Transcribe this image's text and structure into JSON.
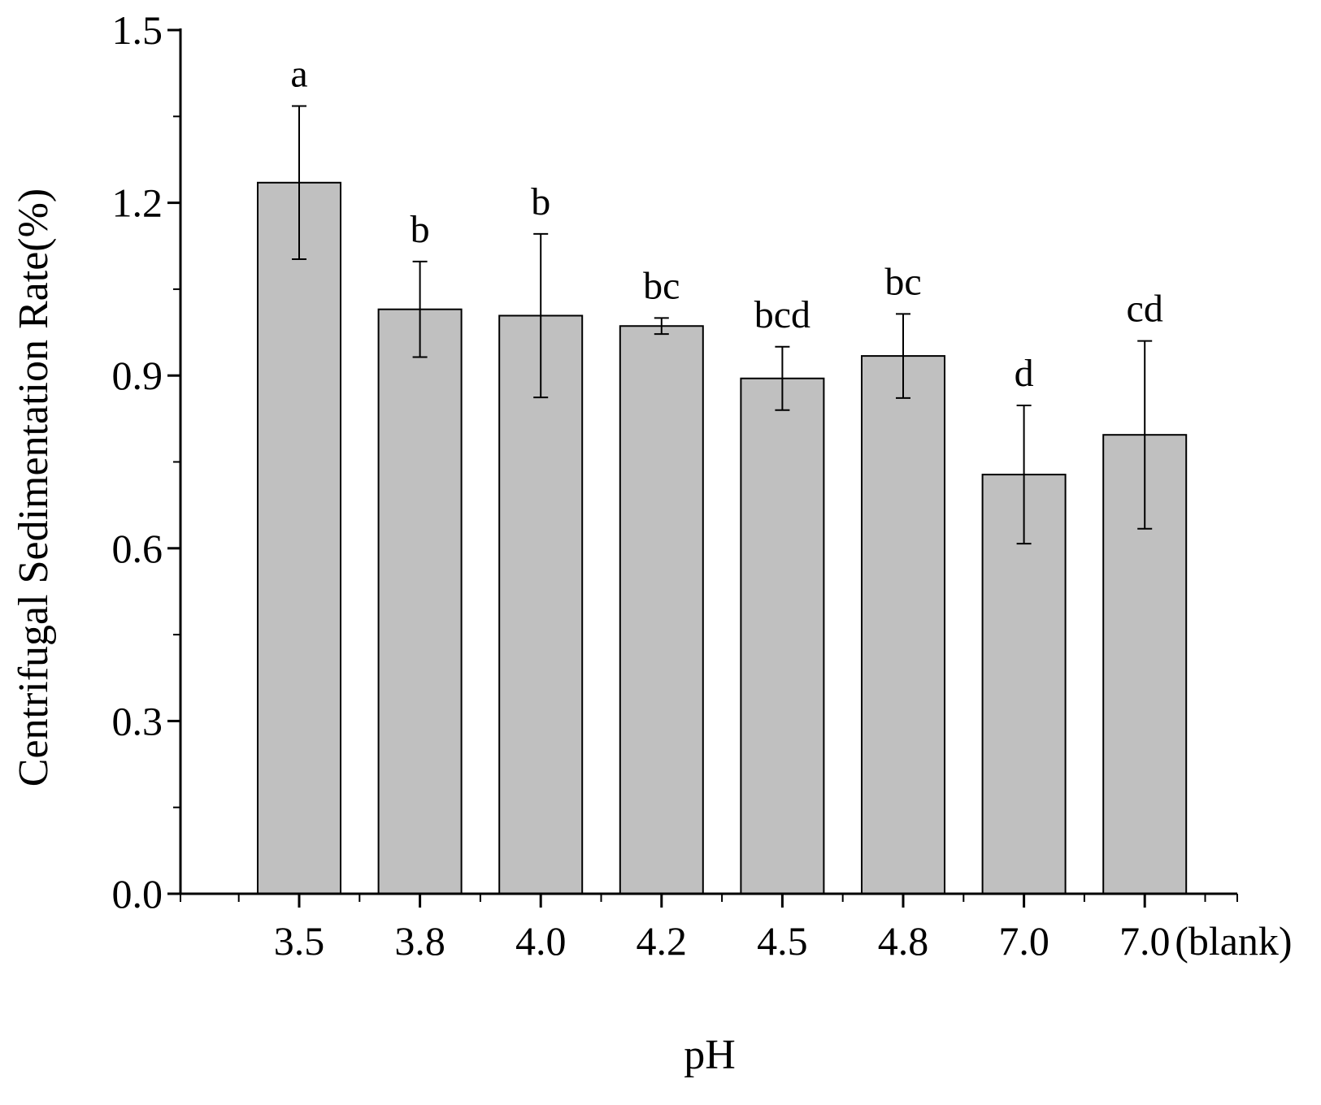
{
  "chart_data": {
    "type": "bar",
    "title": "",
    "xlabel": "pH",
    "ylabel": "Centrifugal Sedimentation Rate(%)",
    "categories": [
      "3.5",
      "3.8",
      "4.0",
      "4.2",
      "4.5",
      "4.8",
      "7.0",
      "7.0"
    ],
    "category_suffixes": [
      "",
      "",
      "",
      "",
      "",
      "",
      "",
      "(blank)"
    ],
    "values": [
      1.235,
      1.015,
      1.004,
      0.986,
      0.895,
      0.934,
      0.728,
      0.797
    ],
    "errors": [
      0.133,
      0.083,
      0.142,
      0.014,
      0.055,
      0.073,
      0.12,
      0.163
    ],
    "significance_labels": [
      "a",
      "b",
      "b",
      "bc",
      "bcd",
      "bc",
      "d",
      "cd"
    ],
    "ylim": [
      0.0,
      1.5
    ],
    "yticks": [
      "0.0",
      "0.3",
      "0.6",
      "0.9",
      "1.2",
      "1.5"
    ],
    "bar_color": "#c0c0c0",
    "grid": false,
    "legend": "none"
  }
}
